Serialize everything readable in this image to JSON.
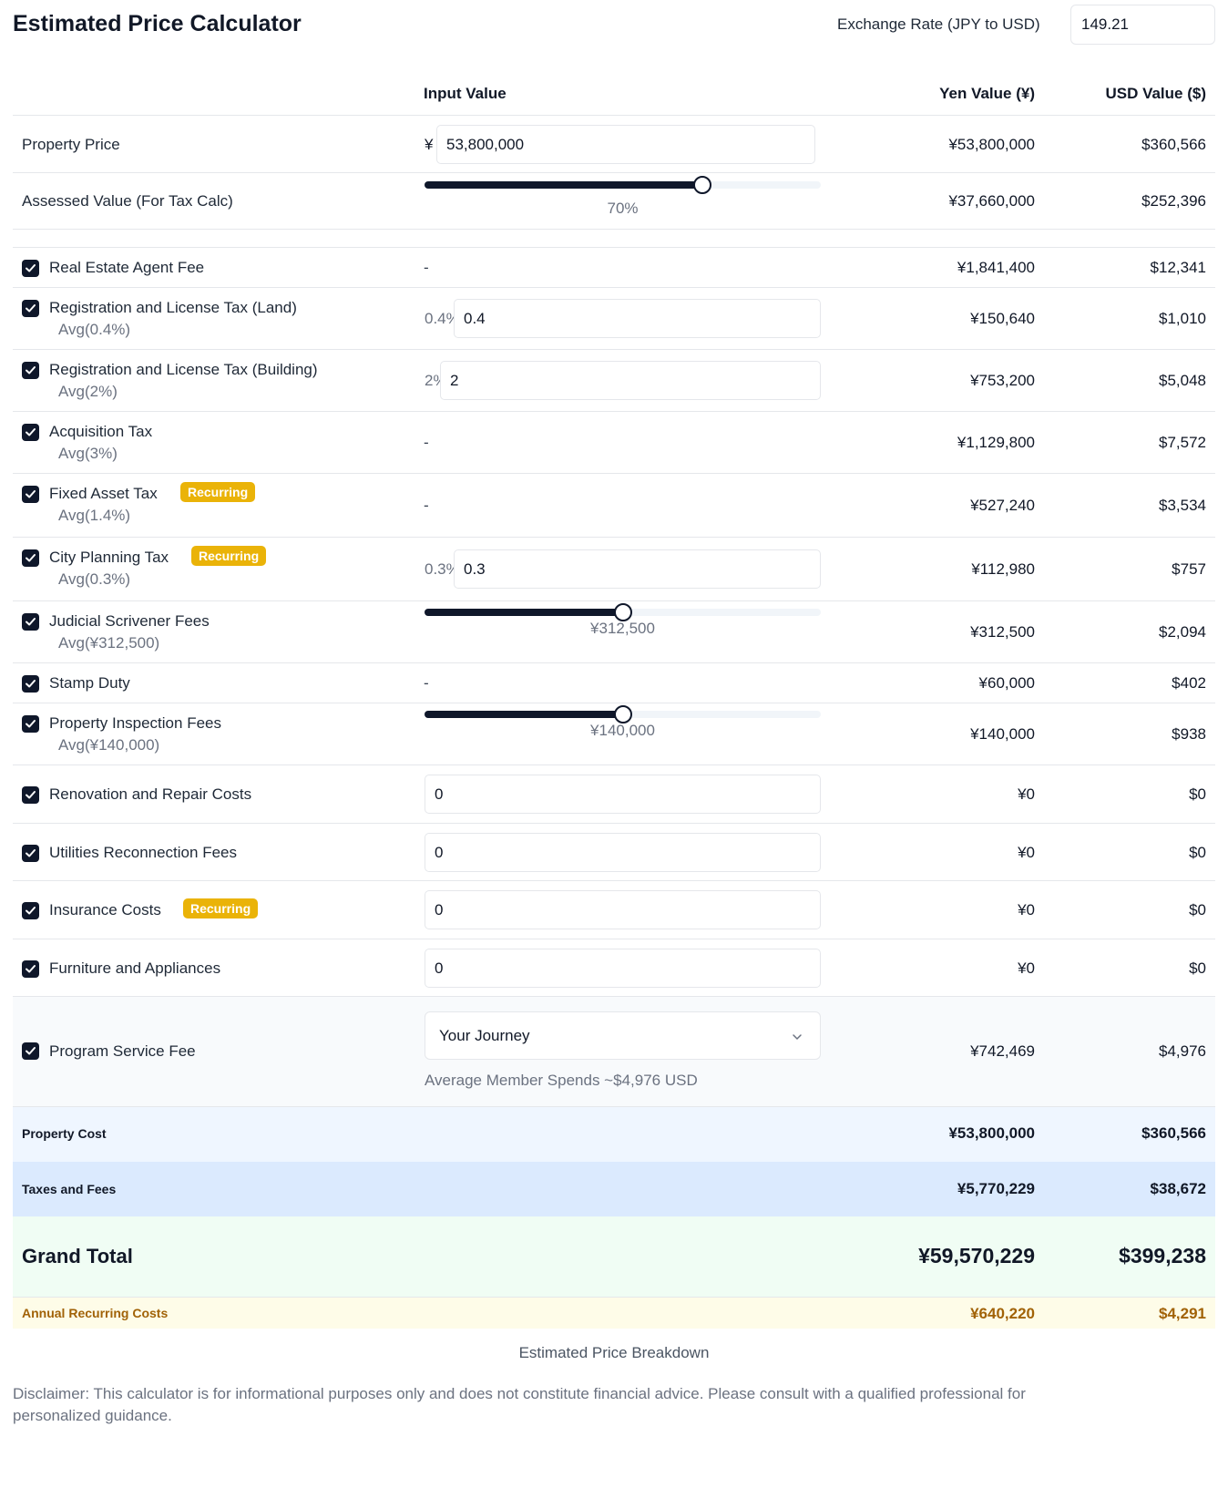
{
  "header": {
    "title": "Estimated Price Calculator",
    "rate_label": "Exchange Rate (JPY to USD)",
    "rate_value": "149.21"
  },
  "columns": {
    "input": "Input Value",
    "yen": "Yen Value (¥)",
    "usd": "USD Value ($)"
  },
  "property_price": {
    "label": "Property Price",
    "currency_symbol": "¥",
    "value": "53,800,000",
    "yen": "¥53,800,000",
    "usd": "$360,566"
  },
  "assessed_value": {
    "label": "Assessed Value (For Tax Calc)",
    "slider_fraction": 0.7,
    "slider_text": "70%",
    "yen": "¥37,660,000",
    "usd": "$252,396"
  },
  "badge_text": "Recurring",
  "dash": "-",
  "rows": [
    {
      "name": "Real Estate Agent Fee",
      "yen": "¥1,841,400",
      "usd": "$12,341"
    },
    {
      "name": "Registration and License Tax (Land)",
      "avg": "Avg(0.4%)",
      "pct": "0.4%",
      "value": "0.4",
      "yen": "¥150,640",
      "usd": "$1,010"
    },
    {
      "name": "Registration and License Tax (Building)",
      "avg": "Avg(2%)",
      "pct": "2%",
      "value": "2",
      "yen": "¥753,200",
      "usd": "$5,048"
    },
    {
      "name": "Acquisition Tax",
      "avg": "Avg(3%)",
      "yen": "¥1,129,800",
      "usd": "$7,572"
    },
    {
      "name": "Fixed Asset Tax",
      "avg": "Avg(1.4%)",
      "recurring": true,
      "yen": "¥527,240",
      "usd": "$3,534"
    },
    {
      "name": "City Planning Tax",
      "avg": "Avg(0.3%)",
      "recurring": true,
      "pct": "0.3%",
      "value": "0.3",
      "yen": "¥112,980",
      "usd": "$757"
    },
    {
      "name": "Judicial Scrivener Fees",
      "avg": "Avg(¥312,500)",
      "slider_fraction": 0.5,
      "slider_text": "¥312,500",
      "yen": "¥312,500",
      "usd": "$2,094"
    },
    {
      "name": "Stamp Duty",
      "yen": "¥60,000",
      "usd": "$402"
    },
    {
      "name": "Property Inspection Fees",
      "avg": "Avg(¥140,000)",
      "slider_fraction": 0.5,
      "slider_text": "¥140,000",
      "yen": "¥140,000",
      "usd": "$938"
    },
    {
      "name": "Renovation and Repair Costs",
      "value": "0",
      "yen": "¥0",
      "usd": "$0"
    },
    {
      "name": "Utilities Reconnection Fees",
      "value": "0",
      "yen": "¥0",
      "usd": "$0"
    },
    {
      "name": "Insurance Costs",
      "recurring": true,
      "value": "0",
      "yen": "¥0",
      "usd": "$0"
    },
    {
      "name": "Furniture and Appliances",
      "value": "0",
      "yen": "¥0",
      "usd": "$0"
    }
  ],
  "program_fee": {
    "name": "Program Service Fee",
    "selected": "Your Journey",
    "note": "Average Member Spends ~$4,976 USD",
    "yen": "¥742,469",
    "usd": "$4,976"
  },
  "summary": {
    "property_cost": {
      "label": "Property Cost",
      "yen": "¥53,800,000",
      "usd": "$360,566"
    },
    "taxes_fees": {
      "label": "Taxes and Fees",
      "yen": "¥5,770,229",
      "usd": "$38,672"
    },
    "grand_total": {
      "label": "Grand Total",
      "yen": "¥59,570,229",
      "usd": "$399,238"
    },
    "annual_recurring": {
      "label": "Annual Recurring Costs",
      "yen": "¥640,220",
      "usd": "$4,291"
    }
  },
  "breakdown_label": "Estimated Price Breakdown",
  "disclaimer": "Disclaimer: This calculator is for informational purposes only and does not constitute financial advice. Please consult with a qualified professional for personalized guidance.",
  "colors": {
    "badge": "#eab308",
    "dark": "#0f172a",
    "property_cost_bg": "#eff6ff",
    "taxes_bg": "#dbeafe",
    "grand_total_bg": "#f0fdf4",
    "recurring_bg": "#fefce8",
    "recurring_text": "#a16207"
  }
}
